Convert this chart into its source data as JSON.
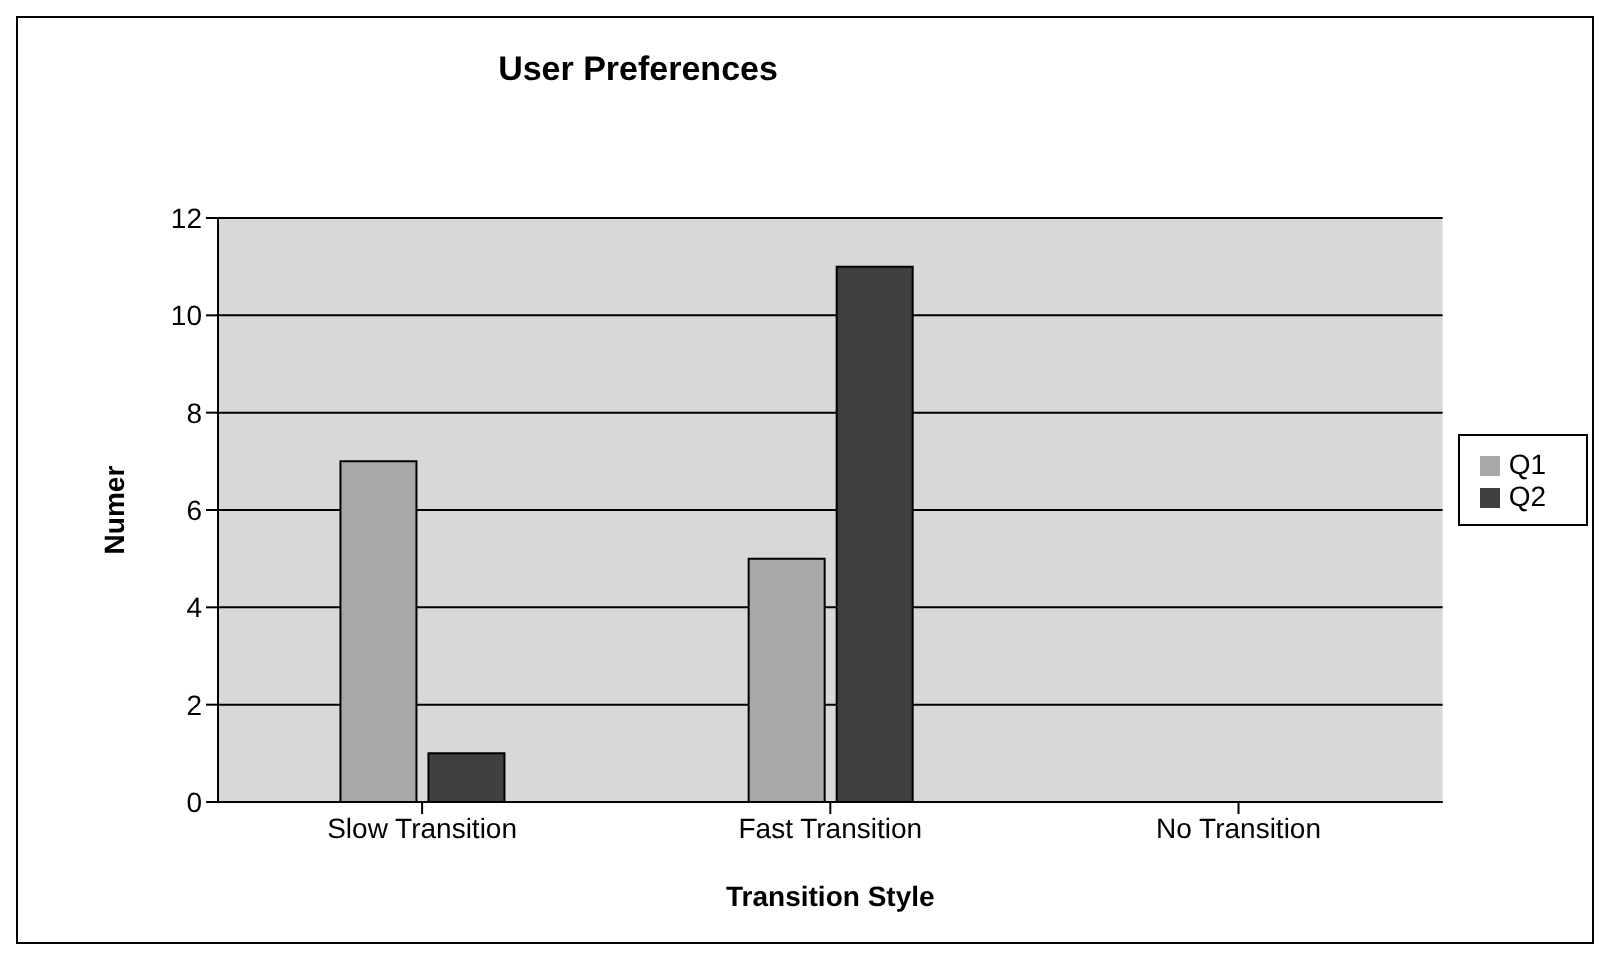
{
  "chart_data": {
    "type": "bar",
    "title": "User Preferences",
    "xlabel": "Transition Style",
    "ylabel": "Numer",
    "categories": [
      "Slow Transition",
      "Fast Transition",
      "No Transition"
    ],
    "series": [
      {
        "name": "Q1",
        "color": "#a8a8a8",
        "values": [
          7,
          5,
          0
        ]
      },
      {
        "name": "Q2",
        "color": "#404040",
        "values": [
          1,
          11,
          0
        ]
      }
    ],
    "ylim": [
      0,
      12
    ],
    "yticks": [
      0,
      2,
      4,
      6,
      8,
      10,
      12
    ],
    "grid": "y",
    "legend": "right"
  }
}
